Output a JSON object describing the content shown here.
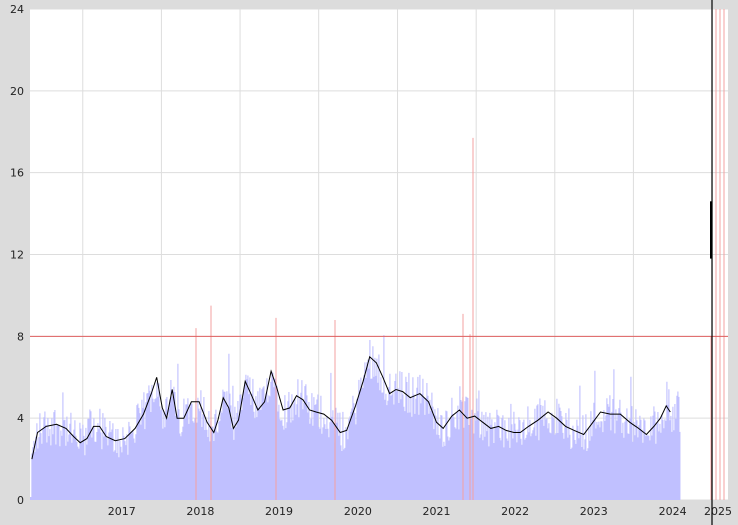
{
  "chart_data": {
    "type": "bar",
    "title": "",
    "xlabel": "",
    "ylabel": "",
    "ylim": [
      0,
      24
    ],
    "y_ticks": [
      0,
      4,
      8,
      12,
      16,
      20,
      24
    ],
    "x_range": [
      "2016-05-01",
      "2025-03-15"
    ],
    "x_ticks": [
      "2017",
      "2018",
      "2019",
      "2020",
      "2021",
      "2022",
      "2023",
      "2024",
      "2025"
    ],
    "grid": true,
    "legend": "none",
    "threshold": {
      "value": 8,
      "color": "#e06060"
    },
    "colors": {
      "bars": "#c0c0ff",
      "line": "#000000",
      "spikes": "#f3a0a0",
      "plot_bg": "#ffffff",
      "grid": "#dddddd"
    },
    "series": [
      {
        "name": "",
        "role": "moving-average",
        "points": [
          [
            "2016-05-10",
            2.0
          ],
          [
            "2016-06-05",
            3.3
          ],
          [
            "2016-07-15",
            3.6
          ],
          [
            "2016-09-01",
            3.7
          ],
          [
            "2016-10-15",
            3.5
          ],
          [
            "2016-11-20",
            3.1
          ],
          [
            "2016-12-20",
            2.8
          ],
          [
            "2017-01-20",
            3.0
          ],
          [
            "2017-02-20",
            3.6
          ],
          [
            "2017-03-20",
            3.6
          ],
          [
            "2017-04-20",
            3.1
          ],
          [
            "2017-06-01",
            2.9
          ],
          [
            "2017-07-15",
            3.0
          ],
          [
            "2017-09-01",
            3.5
          ],
          [
            "2017-10-10",
            4.2
          ],
          [
            "2017-11-15",
            5.2
          ],
          [
            "2017-12-10",
            6.0
          ],
          [
            "2018-01-05",
            4.5
          ],
          [
            "2018-01-25",
            4.0
          ],
          [
            "2018-02-20",
            5.4
          ],
          [
            "2018-03-15",
            4.0
          ],
          [
            "2018-04-15",
            4.0
          ],
          [
            "2018-05-20",
            4.8
          ],
          [
            "2018-06-25",
            4.8
          ],
          [
            "2018-08-01",
            3.8
          ],
          [
            "2018-09-01",
            3.3
          ],
          [
            "2018-09-20",
            3.9
          ],
          [
            "2018-10-15",
            5.0
          ],
          [
            "2018-11-10",
            4.5
          ],
          [
            "2018-12-01",
            3.5
          ],
          [
            "2018-12-25",
            3.9
          ],
          [
            "2019-01-25",
            5.8
          ],
          [
            "2019-02-20",
            5.2
          ],
          [
            "2019-03-25",
            4.4
          ],
          [
            "2019-04-25",
            4.8
          ],
          [
            "2019-05-25",
            6.3
          ],
          [
            "2019-06-20",
            5.5
          ],
          [
            "2019-07-20",
            4.4
          ],
          [
            "2019-08-20",
            4.5
          ],
          [
            "2019-09-20",
            5.1
          ],
          [
            "2019-10-20",
            4.9
          ],
          [
            "2019-11-20",
            4.4
          ],
          [
            "2019-12-20",
            4.3
          ],
          [
            "2020-01-25",
            4.2
          ],
          [
            "2020-03-01",
            3.9
          ],
          [
            "2020-04-10",
            3.3
          ],
          [
            "2020-05-10",
            3.4
          ],
          [
            "2020-06-20",
            4.6
          ],
          [
            "2020-07-25",
            5.8
          ],
          [
            "2020-08-25",
            7.0
          ],
          [
            "2020-09-25",
            6.7
          ],
          [
            "2020-10-25",
            6.0
          ],
          [
            "2020-11-25",
            5.2
          ],
          [
            "2020-12-25",
            5.4
          ],
          [
            "2021-01-25",
            5.3
          ],
          [
            "2021-03-01",
            5.0
          ],
          [
            "2021-04-15",
            5.2
          ],
          [
            "2021-05-25",
            4.8
          ],
          [
            "2021-07-01",
            3.8
          ],
          [
            "2021-08-01",
            3.5
          ],
          [
            "2021-09-10",
            4.1
          ],
          [
            "2021-10-15",
            4.4
          ],
          [
            "2021-11-20",
            4.0
          ],
          [
            "2021-12-25",
            4.1
          ],
          [
            "2022-02-01",
            3.8
          ],
          [
            "2022-03-10",
            3.5
          ],
          [
            "2022-04-15",
            3.6
          ],
          [
            "2022-05-20",
            3.4
          ],
          [
            "2022-06-25",
            3.3
          ],
          [
            "2022-07-25",
            3.3
          ],
          [
            "2022-09-01",
            3.6
          ],
          [
            "2022-10-15",
            3.9
          ],
          [
            "2022-12-01",
            4.3
          ],
          [
            "2023-01-10",
            4.0
          ],
          [
            "2023-02-20",
            3.6
          ],
          [
            "2023-04-01",
            3.4
          ],
          [
            "2023-05-15",
            3.2
          ],
          [
            "2023-06-20",
            3.7
          ],
          [
            "2023-08-01",
            4.3
          ],
          [
            "2023-09-15",
            4.2
          ],
          [
            "2023-11-01",
            4.2
          ],
          [
            "2023-12-15",
            3.8
          ],
          [
            "2024-01-25",
            3.5
          ],
          [
            "2024-03-01",
            3.2
          ],
          [
            "2024-04-05",
            3.6
          ],
          [
            "2024-05-05",
            4.0
          ],
          [
            "2024-06-01",
            4.6
          ],
          [
            "2024-06-20",
            4.3
          ]
        ]
      }
    ]
  }
}
